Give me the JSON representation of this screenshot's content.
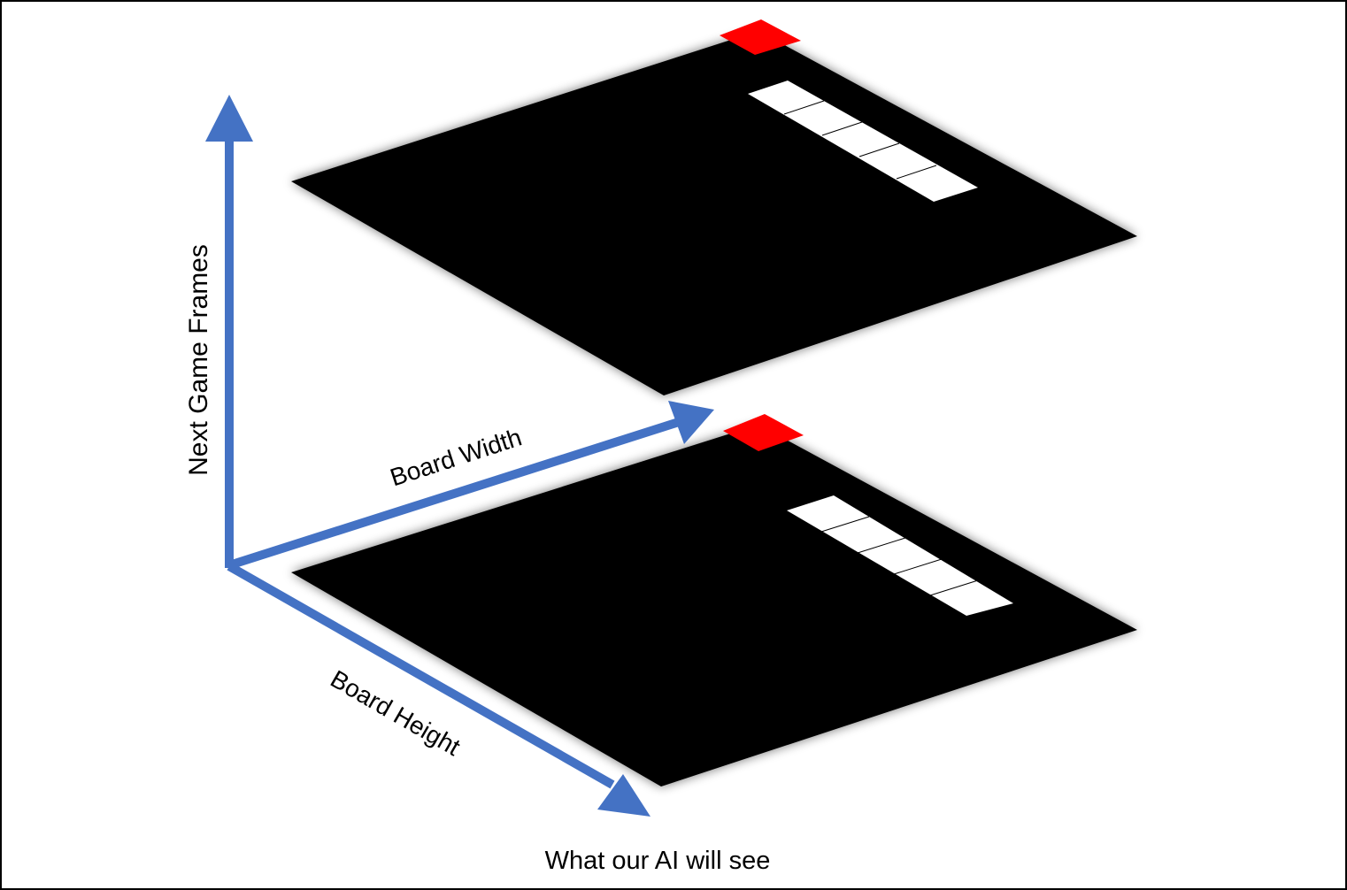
{
  "axes": {
    "vertical_label": "Next Game Frames",
    "width_label": "Board Width",
    "height_label": "Board Height",
    "color": "#4472C4"
  },
  "caption": "What our AI will see",
  "board": {
    "color": "#000000",
    "food_color": "#FF0000",
    "snake_color": "#FFFFFF",
    "snake_segments": 5
  },
  "frames": [
    {
      "name": "upper-frame"
    },
    {
      "name": "lower-frame"
    }
  ]
}
